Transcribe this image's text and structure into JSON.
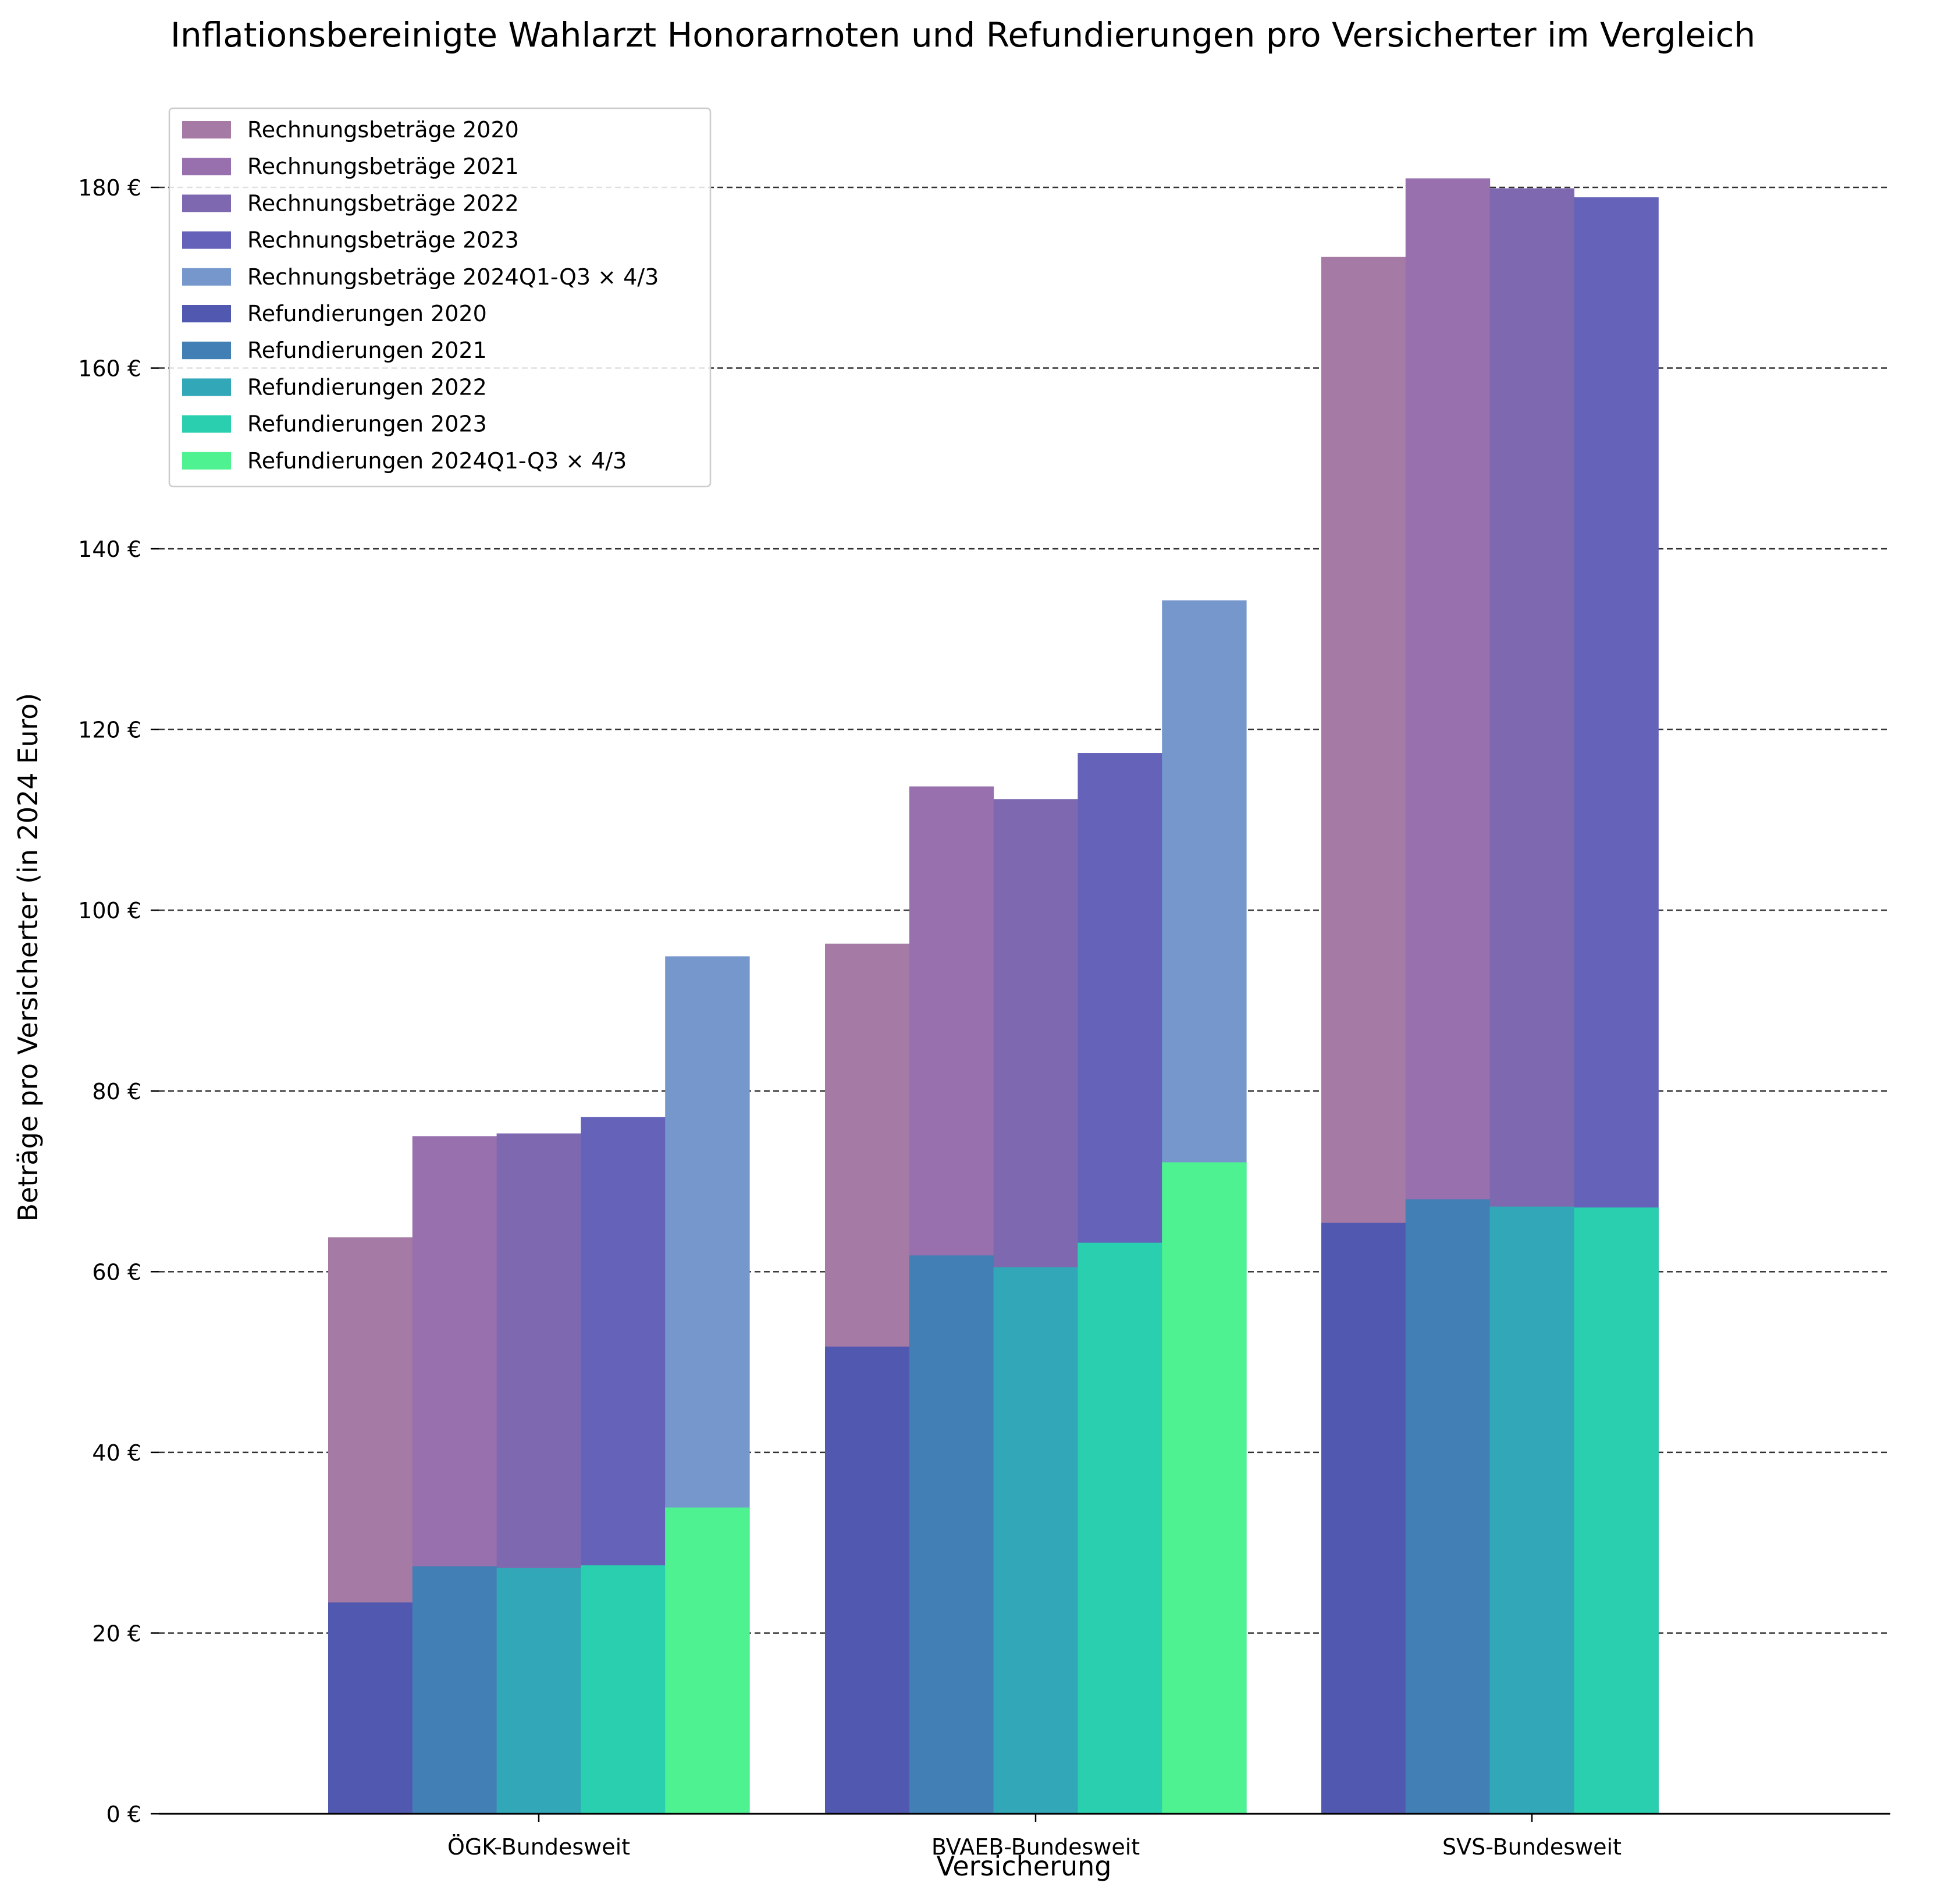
{
  "chart_data": {
    "type": "bar",
    "title": "Inflationsbereinigte Wahlarzt Honorarnoten und Refundierungen pro Versicherter im Vergleich",
    "xlabel": "Versicherung",
    "ylabel": "Beträge pro Versicherter (in 2024 Euro)",
    "categories": [
      "ÖGK-Bundesweit",
      "BVAEB-Bundesweit",
      "SVS-Bundesweit"
    ],
    "ylim": [
      0,
      190
    ],
    "yticks": [
      0,
      20,
      40,
      60,
      80,
      100,
      120,
      140,
      160,
      180
    ],
    "ytick_labels": [
      "0 €",
      "20 €",
      "40 €",
      "60 €",
      "80 €",
      "100 €",
      "120 €",
      "140 €",
      "160 €",
      "180 €"
    ],
    "grid": "horizontal dashed",
    "legend_position": "top-left",
    "series": [
      {
        "name": "Rechnungsbeträge 2020",
        "group": "rechnung",
        "color": "#a57aa4",
        "values": [
          63.8,
          96.3,
          172.3
        ]
      },
      {
        "name": "Rechnungsbeträge 2021",
        "group": "rechnung",
        "color": "#9870ae",
        "values": [
          75.0,
          113.7,
          181.0
        ]
      },
      {
        "name": "Rechnungsbeträge 2022",
        "group": "rechnung",
        "color": "#7e69b0",
        "values": [
          75.3,
          112.3,
          179.9
        ]
      },
      {
        "name": "Rechnungsbeträge 2023",
        "group": "rechnung",
        "color": "#6463b9",
        "values": [
          77.1,
          117.4,
          178.9
        ]
      },
      {
        "name": "Rechnungsbeträge 2024Q1-Q3 × 4/3",
        "group": "rechnung",
        "color": "#7697cc",
        "values": [
          94.9,
          134.3,
          null
        ]
      },
      {
        "name": "Refundierungen 2020",
        "group": "refund",
        "color": "#5158b0",
        "values": [
          23.4,
          51.7,
          65.4
        ]
      },
      {
        "name": "Refundierungen 2021",
        "group": "refund",
        "color": "#427fb5",
        "values": [
          27.4,
          61.8,
          68.0
        ]
      },
      {
        "name": "Refundierungen 2022",
        "group": "refund",
        "color": "#32a7b8",
        "values": [
          27.2,
          60.5,
          67.2
        ]
      },
      {
        "name": "Refundierungen 2023",
        "group": "refund",
        "color": "#29cfaf",
        "values": [
          27.5,
          63.2,
          67.1
        ]
      },
      {
        "name": "Refundierungen 2024Q1-Q3 × 4/3",
        "group": "refund",
        "color": "#4ef291",
        "values": [
          33.9,
          72.1,
          null
        ]
      }
    ]
  }
}
